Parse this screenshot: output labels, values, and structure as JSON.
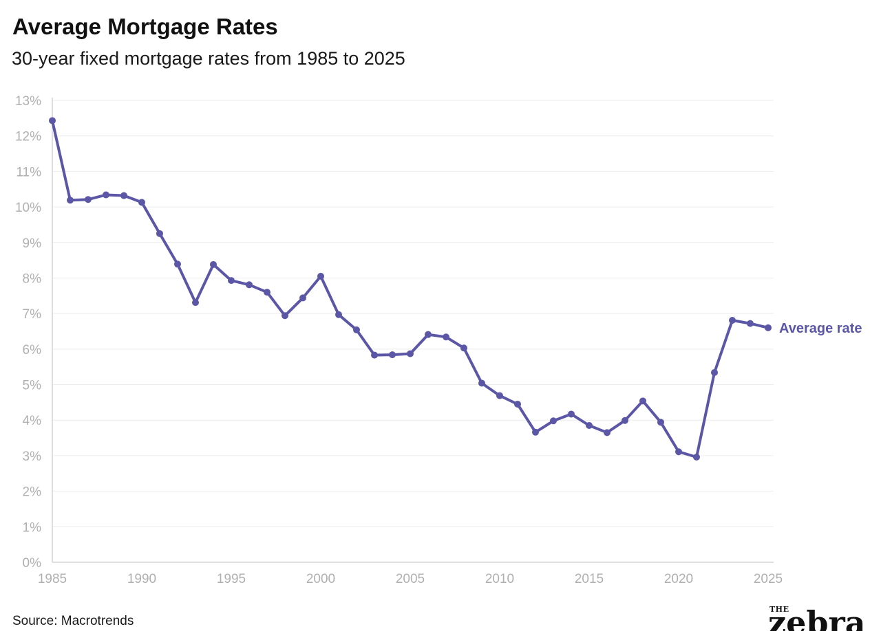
{
  "header": {
    "title": "Average Mortgage Rates",
    "subtitle": "30-year fixed mortgage rates from 1985 to 2025"
  },
  "footer": {
    "source": "Source: Macrotrends",
    "logo_the": "THE",
    "logo_word": "zebra"
  },
  "colors": {
    "series": "#5b57a6",
    "grid": "#ececec",
    "tick_text": "#b0b0b0"
  },
  "chart_data": {
    "type": "line",
    "title": "Average Mortgage Rates",
    "subtitle": "30-year fixed mortgage rates from 1985 to 2025",
    "xlabel": "",
    "ylabel": "",
    "xlim": [
      1985,
      2025
    ],
    "ylim": [
      0,
      13
    ],
    "x_ticks": [
      1985,
      1990,
      1995,
      2000,
      2005,
      2010,
      2015,
      2020,
      2025
    ],
    "y_ticks": [
      0,
      1,
      2,
      3,
      4,
      5,
      6,
      7,
      8,
      9,
      10,
      11,
      12,
      13
    ],
    "y_tick_suffix": "%",
    "grid": "horizontal",
    "series": [
      {
        "name": "Average rate",
        "x": [
          1985,
          1986,
          1987,
          1988,
          1989,
          1990,
          1991,
          1992,
          1993,
          1994,
          1995,
          1996,
          1997,
          1998,
          1999,
          2000,
          2001,
          2002,
          2003,
          2004,
          2005,
          2006,
          2007,
          2008,
          2009,
          2010,
          2011,
          2012,
          2013,
          2014,
          2015,
          2016,
          2017,
          2018,
          2019,
          2020,
          2021,
          2022,
          2023,
          2024,
          2025
        ],
        "values": [
          12.43,
          10.19,
          10.21,
          10.34,
          10.32,
          10.13,
          9.25,
          8.39,
          7.31,
          8.38,
          7.93,
          7.81,
          7.6,
          6.94,
          7.44,
          8.05,
          6.97,
          6.54,
          5.83,
          5.84,
          5.87,
          6.41,
          6.34,
          6.03,
          5.04,
          4.69,
          4.45,
          3.66,
          3.98,
          4.17,
          3.85,
          3.65,
          3.99,
          4.54,
          3.94,
          3.11,
          2.96,
          5.34,
          6.81,
          6.72,
          6.6
        ]
      }
    ]
  }
}
